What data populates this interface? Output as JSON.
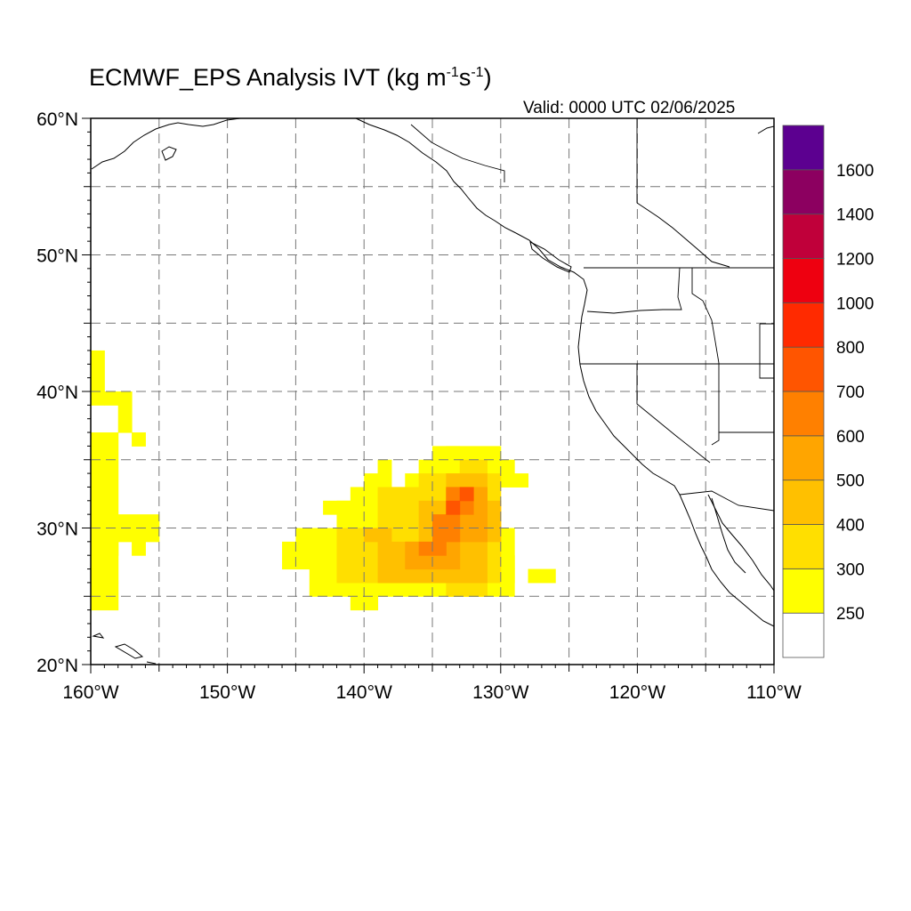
{
  "title": {
    "main": "ECMWF_EPS Analysis IVT (kg m",
    "exp1": "-1",
    "mid": "s",
    "exp2": "-1",
    "close": ")"
  },
  "valid_label": "Valid: 0000 UTC 02/06/2025",
  "map": {
    "lon_range": [
      -160,
      -110
    ],
    "lat_range": [
      20,
      60
    ],
    "lon_labels": [
      "160°W",
      "150°W",
      "140°W",
      "130°W",
      "120°W",
      "110°W"
    ],
    "lat_labels": [
      "60°N",
      "50°N",
      "40°N",
      "30°N",
      "20°N"
    ],
    "gridlines": "dashed every 5°"
  },
  "colorbar": {
    "levels": [
      "250",
      "300",
      "400",
      "500",
      "600",
      "700",
      "800",
      "1000",
      "1200",
      "1400",
      "1600"
    ],
    "colors": [
      "#ffffff",
      "#ffff00",
      "#ffdf00",
      "#ffc000",
      "#ffa500",
      "#ff8000",
      "#ff5500",
      "#ff2a00",
      "#ee0010",
      "#c0003a",
      "#8c0060",
      "#5c0090"
    ]
  },
  "features": [
    {
      "name": "main-atmospheric-river",
      "center": [
        -134,
        30
      ],
      "peak_ivt": "700-800"
    },
    {
      "name": "western-edge-band",
      "center": [
        -159,
        31
      ],
      "peak_ivt": "250-300"
    }
  ]
}
